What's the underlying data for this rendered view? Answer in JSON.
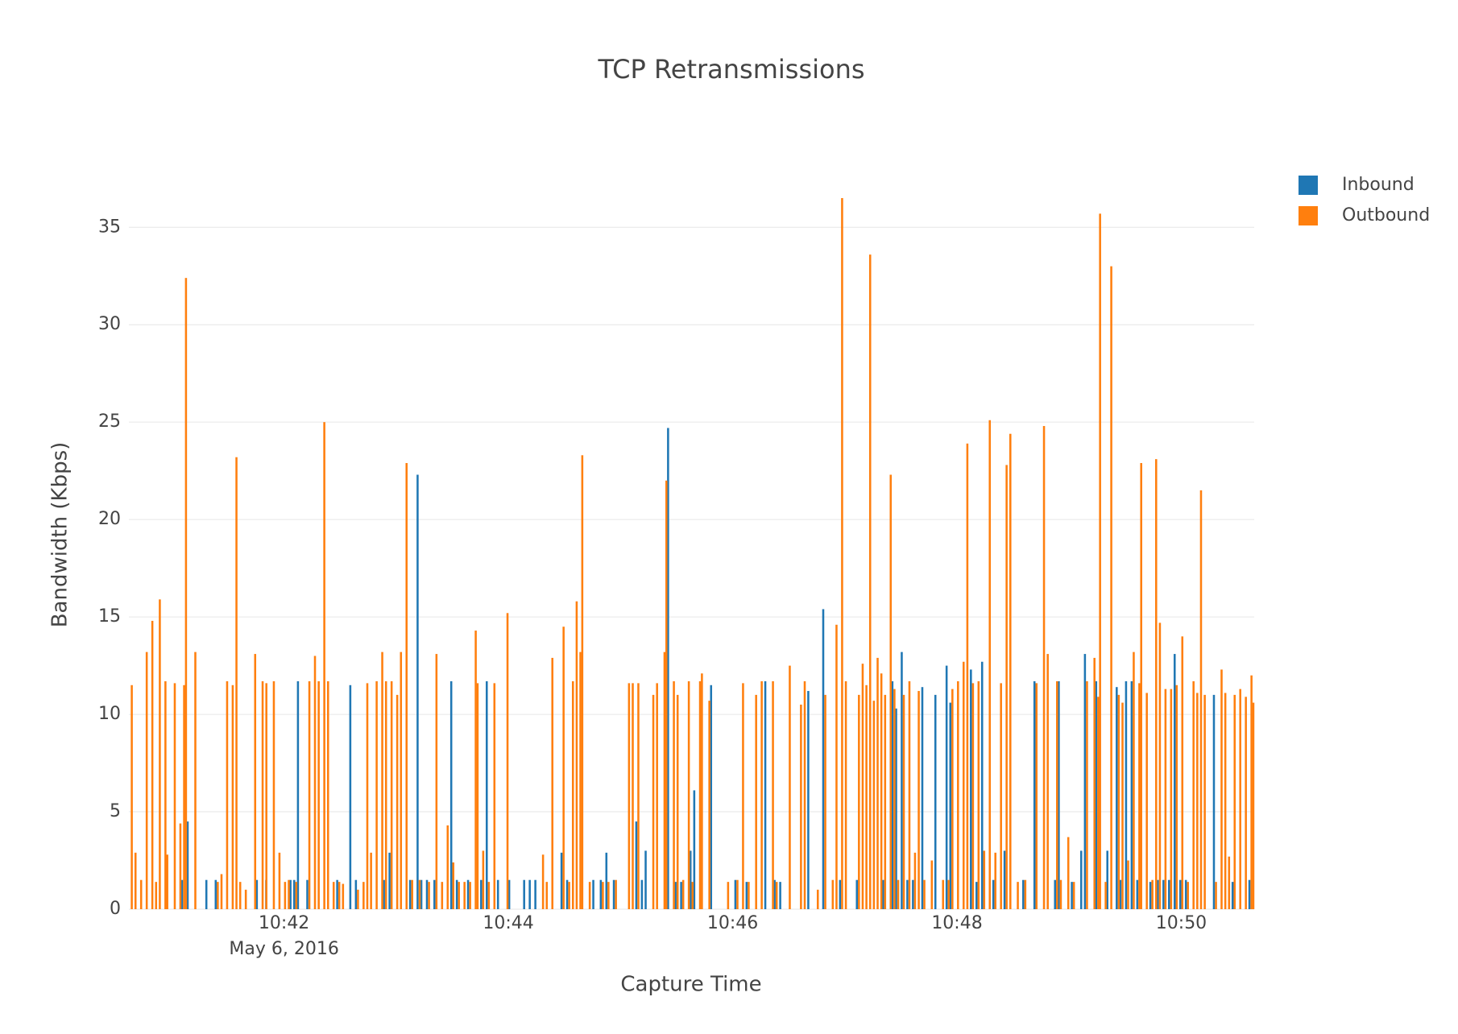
{
  "chart_data": {
    "type": "bar",
    "title": "TCP Retransmissions",
    "x_title": "Capture Time",
    "y_title": "Bandwidth (Kbps)",
    "x_date_label": "May 6, 2016",
    "xlim": [
      "10:40:37",
      "10:50:39"
    ],
    "xticks": [
      {
        "value": "10:42:00",
        "label": "10:42"
      },
      {
        "value": "10:44:00",
        "label": "10:44"
      },
      {
        "value": "10:46:00",
        "label": "10:46"
      },
      {
        "value": "10:48:00",
        "label": "10:48"
      },
      {
        "value": "10:50:00",
        "label": "10:50"
      }
    ],
    "ylim": [
      0,
      38.4
    ],
    "yticks": [
      0,
      5,
      10,
      15,
      20,
      25,
      30,
      35
    ],
    "grid": true,
    "legend": "top-right",
    "x": [
      "10:40:38",
      "10:40:40",
      "10:40:43",
      "10:40:46",
      "10:40:49",
      "10:40:51",
      "10:40:53",
      "10:40:56",
      "10:40:57",
      "10:41:01",
      "10:41:04",
      "10:41:06",
      "10:41:07",
      "10:41:09",
      "10:41:12",
      "10:41:19",
      "10:41:24",
      "10:41:26",
      "10:41:29",
      "10:41:32",
      "10:41:34",
      "10:41:36",
      "10:41:39",
      "10:41:44",
      "10:41:46",
      "10:41:48",
      "10:41:50",
      "10:41:51",
      "10:41:54",
      "10:41:57",
      "10:42:00",
      "10:42:02",
      "10:42:04",
      "10:42:06",
      "10:42:08",
      "10:42:13",
      "10:42:16",
      "10:42:18",
      "10:42:21",
      "10:42:23",
      "10:42:26",
      "10:42:29",
      "10:42:31",
      "10:42:36",
      "10:42:39",
      "10:42:42",
      "10:42:44",
      "10:42:46",
      "10:42:49",
      "10:42:52",
      "10:42:54",
      "10:42:57",
      "10:43:00",
      "10:43:02",
      "10:43:05",
      "10:43:08",
      "10:43:12",
      "10:43:14",
      "10:43:17",
      "10:43:21",
      "10:43:24",
      "10:43:27",
      "10:43:30",
      "10:43:33",
      "10:43:36",
      "10:43:39",
      "10:43:42",
      "10:43:43",
      "10:43:46",
      "10:43:49",
      "10:43:52",
      "10:43:55",
      "10:43:59",
      "10:44:01",
      "10:44:09",
      "10:44:12",
      "10:44:15",
      "10:44:18",
      "10:44:20",
      "10:44:23",
      "10:44:29",
      "10:44:32",
      "10:44:34",
      "10:44:36",
      "10:44:38",
      "10:44:39",
      "10:44:43",
      "10:44:46",
      "10:44:50",
      "10:44:53",
      "10:44:57",
      "10:45:04",
      "10:45:06",
      "10:45:09",
      "10:45:12",
      "10:45:14",
      "10:45:17",
      "10:45:19",
      "10:45:23",
      "10:45:24",
      "10:45:26",
      "10:45:28",
      "10:45:30",
      "10:45:33",
      "10:45:36",
      "10:45:38",
      "10:45:40",
      "10:45:42",
      "10:45:43",
      "10:45:47",
      "10:45:49",
      "10:45:57",
      "10:46:02",
      "10:46:05",
      "10:46:08",
      "10:46:12",
      "10:46:15",
      "10:46:18",
      "10:46:21",
      "10:46:23",
      "10:46:26",
      "10:46:30",
      "10:46:36",
      "10:46:38",
      "10:46:41",
      "10:46:45",
      "10:46:49",
      "10:46:53",
      "10:46:55",
      "10:46:58",
      "10:47:00",
      "10:47:07",
      "10:47:09",
      "10:47:11",
      "10:47:13",
      "10:47:15",
      "10:47:17",
      "10:47:19",
      "10:47:21",
      "10:47:24",
      "10:47:26",
      "10:47:28",
      "10:47:31",
      "10:47:34",
      "10:47:37",
      "10:47:39",
      "10:47:42",
      "10:47:46",
      "10:47:49",
      "10:47:52",
      "10:47:55",
      "10:47:57",
      "10:48:00",
      "10:48:03",
      "10:48:05",
      "10:48:08",
      "10:48:11",
      "10:48:14",
      "10:48:17",
      "10:48:20",
      "10:48:23",
      "10:48:26",
      "10:48:28",
      "10:48:32",
      "10:48:36",
      "10:48:42",
      "10:48:46",
      "10:48:48",
      "10:48:53",
      "10:48:55",
      "10:48:59",
      "10:49:02",
      "10:49:07",
      "10:49:09",
      "10:49:13",
      "10:49:15",
      "10:49:16",
      "10:49:19",
      "10:49:21",
      "10:49:22",
      "10:49:26",
      "10:49:28",
      "10:49:31",
      "10:49:34",
      "10:49:37",
      "10:49:38",
      "10:49:41",
      "10:49:44",
      "10:49:46",
      "10:49:48",
      "10:49:51",
      "10:49:54",
      "10:49:57",
      "10:49:58",
      "10:50:00",
      "10:50:03",
      "10:50:06",
      "10:50:08",
      "10:50:10",
      "10:50:12",
      "10:50:18",
      "10:50:21",
      "10:50:23",
      "10:50:25",
      "10:50:28",
      "10:50:31",
      "10:50:34",
      "10:50:37",
      "10:50:38"
    ],
    "series": [
      {
        "name": "Inbound",
        "color": "#1f77b4",
        "values": [
          0,
          0,
          0,
          0,
          0,
          0,
          0,
          0,
          0,
          0,
          0,
          1.5,
          0,
          4.5,
          0,
          1.5,
          1.5,
          0,
          0,
          0,
          0,
          0,
          0,
          0,
          1.5,
          0,
          0,
          1.5,
          0,
          0,
          0,
          0,
          1.5,
          1.5,
          11.7,
          1.5,
          0,
          0,
          0,
          0,
          0,
          1.5,
          0,
          11.5,
          1.5,
          0,
          0,
          0,
          0,
          0,
          1.5,
          2.9,
          0,
          0,
          0,
          1.5,
          22.3,
          1.5,
          1.5,
          1.5,
          0,
          0,
          11.7,
          1.5,
          0,
          1.5,
          0,
          0,
          1.5,
          11.7,
          0,
          1.5,
          0,
          1.5,
          1.5,
          1.5,
          1.5,
          0,
          0,
          0,
          2.9,
          1.5,
          0,
          0,
          0,
          0,
          0,
          1.5,
          1.5,
          2.9,
          1.5,
          0,
          0,
          4.5,
          1.5,
          3.0,
          0,
          0,
          0,
          0,
          24.7,
          0,
          1.4,
          1.4,
          0,
          3.0,
          6.1,
          0,
          0,
          0,
          11.5,
          0,
          1.5,
          0,
          1.4,
          0,
          0,
          11.7,
          0,
          1.5,
          1.4,
          0,
          0,
          0,
          11.2,
          0,
          15.4,
          0,
          0,
          1.5,
          0,
          1.5,
          0,
          0,
          0,
          0,
          0,
          0,
          1.5,
          0,
          11.7,
          10.3,
          13.2,
          1.5,
          1.5,
          0,
          11.4,
          0,
          11.0,
          0,
          12.5,
          10.6,
          0,
          0,
          0,
          12.3,
          1.4,
          12.7,
          0,
          1.5,
          0,
          3.0,
          0,
          0,
          1.5,
          11.7,
          0,
          0,
          1.5,
          11.7,
          0,
          1.4,
          3.0,
          13.1,
          0,
          11.7,
          0,
          0,
          3.0,
          0,
          11.4,
          1.5,
          11.7,
          11.7,
          1.5,
          0,
          0,
          1.4,
          0,
          1.5,
          1.5,
          1.5,
          13.1,
          3.0,
          1.5,
          1.5,
          0,
          0,
          0,
          0,
          11.0,
          0,
          0,
          0,
          1.4,
          0,
          0,
          1.5,
          0
        ]
      },
      {
        "name": "Outbound",
        "color": "#ff7f0e",
        "values": [
          11.5,
          2.9,
          1.5,
          13.2,
          14.8,
          1.4,
          15.9,
          11.7,
          2.8,
          11.6,
          4.4,
          11.5,
          32.4,
          0,
          13.2,
          0,
          1.4,
          1.8,
          11.7,
          11.5,
          23.2,
          1.4,
          1.0,
          13.1,
          0,
          11.7,
          11.6,
          0,
          11.7,
          2.9,
          1.4,
          1.5,
          0,
          1.4,
          0,
          11.7,
          13.0,
          11.7,
          25.0,
          11.7,
          1.4,
          1.4,
          1.3,
          0,
          1.0,
          1.4,
          11.6,
          2.9,
          11.7,
          13.2,
          11.7,
          11.7,
          11.0,
          13.2,
          22.9,
          1.5,
          1.5,
          0,
          1.4,
          13.1,
          1.4,
          4.3,
          2.4,
          1.4,
          1.4,
          1.4,
          14.3,
          11.6,
          3.0,
          1.4,
          11.6,
          0,
          15.2,
          0,
          0,
          0,
          0,
          2.8,
          1.4,
          12.9,
          14.5,
          1.4,
          11.7,
          15.8,
          13.2,
          23.3,
          1.4,
          0,
          1.4,
          1.4,
          1.5,
          11.6,
          11.6,
          11.6,
          0,
          0,
          11.0,
          11.6,
          13.2,
          22.0,
          0,
          11.7,
          11.0,
          1.5,
          11.7,
          1.4,
          0,
          11.7,
          12.1,
          10.7,
          0,
          1.4,
          1.5,
          11.6,
          1.4,
          11.0,
          11.7,
          0,
          11.7,
          1.4,
          0,
          12.5,
          10.5,
          11.7,
          0,
          1.0,
          11.0,
          1.5,
          14.6,
          36.5,
          11.7,
          11.0,
          12.6,
          11.5,
          33.6,
          10.7,
          12.9,
          12.1,
          11.0,
          22.3,
          11.3,
          1.5,
          11.0,
          11.7,
          2.9,
          11.2,
          1.5,
          2.5,
          0,
          1.5,
          1.5,
          11.3,
          11.7,
          12.7,
          23.9,
          11.6,
          11.7,
          3.0,
          25.1,
          2.9,
          11.6,
          22.8,
          24.4,
          1.4,
          1.5,
          11.6,
          24.8,
          13.1,
          11.7,
          1.5,
          3.7,
          1.4,
          0,
          11.7,
          12.9,
          10.9,
          35.7,
          1.4,
          0,
          33.0,
          11.0,
          10.6,
          2.5,
          13.2,
          11.6,
          22.9,
          11.1,
          1.5,
          23.1,
          14.7,
          11.3,
          11.3,
          11.5,
          0,
          14.0,
          1.4,
          11.7,
          11.1,
          21.5,
          11.0,
          1.4,
          12.3,
          11.1,
          2.7,
          11.0,
          11.3,
          10.9,
          12.0,
          10.6
        ]
      }
    ]
  }
}
